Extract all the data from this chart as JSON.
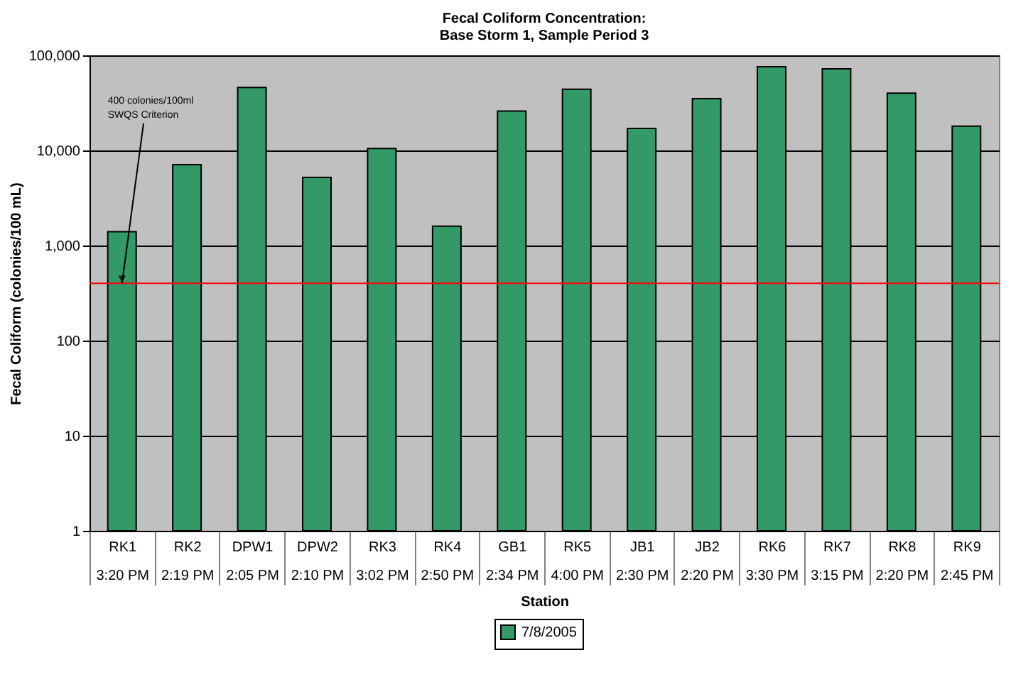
{
  "chart_data": {
    "type": "bar",
    "title": [
      "Fecal Coliform Concentration:",
      "Base Storm 1, Sample Period 3"
    ],
    "xlabel": "Station",
    "ylabel": "Fecal Coliform (colonies/100 mL)",
    "categories": [
      "RK1\n3:20 PM",
      "RK2\n2:19 PM",
      "DPW1\n2:05 PM",
      "DPW2\n2:10 PM",
      "RK3\n3:02 PM",
      "RK4\n2:50 PM",
      "GB1\n2:34 PM",
      "RK5\n4:00 PM",
      "JB1\n2:30 PM",
      "JB2\n2:20 PM",
      "RK6\n3:30 PM",
      "RK7\n3:15 PM",
      "RK8\n2:20 PM",
      "RK9\n2:45 PM"
    ],
    "series": [
      {
        "name": "7/8/2005",
        "color": "#339966",
        "values": [
          1400,
          7100,
          46000,
          5200,
          10500,
          1600,
          26000,
          44000,
          17000,
          35000,
          76000,
          72000,
          40000,
          18000
        ]
      }
    ],
    "log": "y",
    "ylim": [
      1,
      100000
    ],
    "yticks": [
      {
        "value": 1,
        "label": "1"
      },
      {
        "value": 10,
        "label": "10"
      },
      {
        "value": 100,
        "label": "100"
      },
      {
        "value": 1000,
        "label": "1,000"
      },
      {
        "value": 10000,
        "label": "10,000"
      },
      {
        "value": 100000,
        "label": "100,000"
      }
    ],
    "grid": "y",
    "legend": "bottom",
    "ref_lines": [
      {
        "axis": "y",
        "value": 400,
        "color": "#ff0000"
      }
    ],
    "annotations": [
      {
        "text": "400 colonies/100ml\nSWQS Criterion",
        "x": "RK1\n3:20 PM",
        "y": 400
      }
    ]
  }
}
